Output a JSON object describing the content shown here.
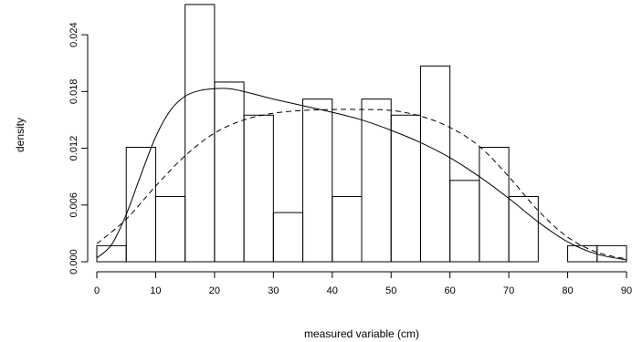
{
  "chart_data": {
    "type": "bar",
    "subtype": "histogram-with-density-curves",
    "title": "",
    "xlabel": "measured variable (cm)",
    "ylabel": "density",
    "xlim": [
      0,
      90
    ],
    "ylim": [
      0,
      0.027
    ],
    "bin_width": 5,
    "bins": [
      {
        "x0": 0,
        "x1": 5,
        "density": 0.0017
      },
      {
        "x0": 5,
        "x1": 10,
        "density": 0.0121
      },
      {
        "x0": 10,
        "x1": 15,
        "density": 0.0069
      },
      {
        "x0": 15,
        "x1": 20,
        "density": 0.0272
      },
      {
        "x0": 20,
        "x1": 25,
        "density": 0.019
      },
      {
        "x0": 25,
        "x1": 30,
        "density": 0.0155
      },
      {
        "x0": 30,
        "x1": 35,
        "density": 0.0052
      },
      {
        "x0": 35,
        "x1": 40,
        "density": 0.0172
      },
      {
        "x0": 40,
        "x1": 45,
        "density": 0.0069
      },
      {
        "x0": 45,
        "x1": 50,
        "density": 0.0172
      },
      {
        "x0": 50,
        "x1": 55,
        "density": 0.0155
      },
      {
        "x0": 55,
        "x1": 60,
        "density": 0.0207
      },
      {
        "x0": 60,
        "x1": 65,
        "density": 0.0086
      },
      {
        "x0": 65,
        "x1": 70,
        "density": 0.0121
      },
      {
        "x0": 70,
        "x1": 75,
        "density": 0.0069
      },
      {
        "x0": 75,
        "x1": 80,
        "density": 0.0
      },
      {
        "x0": 80,
        "x1": 85,
        "density": 0.0017
      },
      {
        "x0": 85,
        "x1": 90,
        "density": 0.0017
      }
    ],
    "x_ticks": [
      {
        "value": 0,
        "label": "0"
      },
      {
        "value": 10,
        "label": "10"
      },
      {
        "value": 20,
        "label": "20"
      },
      {
        "value": 30,
        "label": "30"
      },
      {
        "value": 40,
        "label": "40"
      },
      {
        "value": 50,
        "label": "50"
      },
      {
        "value": 60,
        "label": "60"
      },
      {
        "value": 70,
        "label": "70"
      },
      {
        "value": 80,
        "label": "80"
      },
      {
        "value": 90,
        "label": "90"
      }
    ],
    "y_ticks": [
      {
        "value": 0.0,
        "label": "0.000"
      },
      {
        "value": 0.006,
        "label": "0.006"
      },
      {
        "value": 0.012,
        "label": "0.012"
      },
      {
        "value": 0.018,
        "label": "0.018"
      },
      {
        "value": 0.024,
        "label": "0.024"
      }
    ],
    "series": [
      {
        "style": "solid",
        "x": [
          0,
          2.5,
          5,
          7.5,
          10,
          12.5,
          15,
          17.5,
          20,
          22.5,
          25,
          27.5,
          30,
          35,
          40,
          45,
          50,
          55,
          60,
          65,
          70,
          75,
          80,
          85,
          90
        ],
        "y": [
          0.0004,
          0.0018,
          0.005,
          0.0092,
          0.0132,
          0.016,
          0.0175,
          0.0181,
          0.0183,
          0.0183,
          0.018,
          0.0176,
          0.0172,
          0.0165,
          0.0158,
          0.015,
          0.0139,
          0.0126,
          0.011,
          0.009,
          0.0067,
          0.0042,
          0.0021,
          0.0008,
          0.0002
        ]
      },
      {
        "style": "dashed",
        "x": [
          0,
          5,
          10,
          15,
          20,
          25,
          30,
          35,
          40,
          45,
          50,
          55,
          60,
          65,
          70,
          75,
          80,
          85,
          90
        ],
        "y": [
          0.0019,
          0.0045,
          0.008,
          0.0112,
          0.0136,
          0.015,
          0.0157,
          0.016,
          0.0161,
          0.0161,
          0.016,
          0.0154,
          0.0142,
          0.0122,
          0.009,
          0.0054,
          0.0026,
          0.001,
          0.0003
        ]
      }
    ],
    "grid": false,
    "legend": "none"
  }
}
